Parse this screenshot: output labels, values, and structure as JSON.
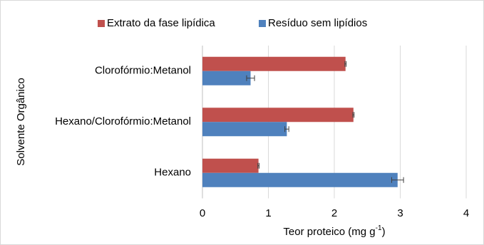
{
  "chart_data": {
    "type": "hbar",
    "categories": [
      "Clorofórmio:Metanol",
      "Hexano/Clorofórmio:Metanol",
      "Hexano"
    ],
    "series": [
      {
        "name": "Extrato da fase lipídica",
        "color": "#c0504d",
        "values": [
          2.17,
          2.29,
          0.85
        ],
        "errors": [
          0.01,
          0.01,
          0.01
        ]
      },
      {
        "name": "Resíduo sem lipídios",
        "color": "#4f81bd",
        "values": [
          0.73,
          1.28,
          2.96
        ],
        "errors": [
          0.06,
          0.03,
          0.09
        ]
      }
    ],
    "xlim": [
      0,
      4
    ],
    "xticks": [
      0,
      1,
      2,
      3,
      4
    ],
    "grid": true,
    "xlabel_parts": [
      "Teor proteico (mg g",
      "-1",
      ")"
    ],
    "ylabel": "Solvente Orgânico",
    "legend": "top"
  }
}
